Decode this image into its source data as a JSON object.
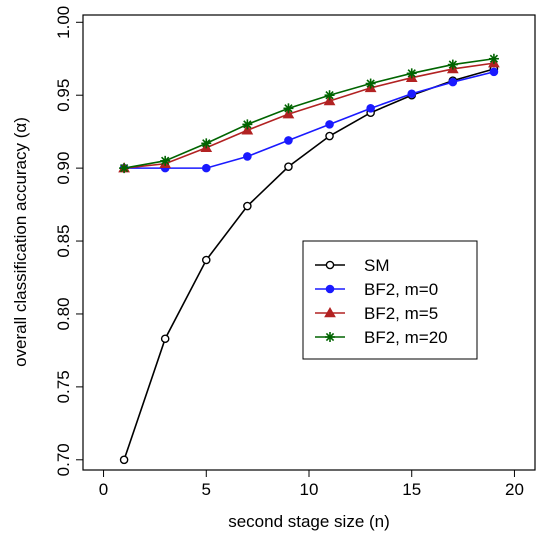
{
  "chart_data": {
    "type": "line",
    "xlabel": "second stage size  (n)",
    "ylabel_prefix": "overall classification accuracy  (",
    "ylabel_symbol": "α",
    "ylabel_suffix": ")",
    "xlim": [
      -1,
      21
    ],
    "ylim": [
      0.693,
      1.005
    ],
    "xticks": [
      0,
      5,
      10,
      15,
      20
    ],
    "xtick_labels": [
      "0",
      "5",
      "10",
      "15",
      "20"
    ],
    "yticks": [
      0.7,
      0.75,
      0.8,
      0.85,
      0.9,
      0.95,
      1.0
    ],
    "ytick_labels": [
      "0.70",
      "0.75",
      "0.80",
      "0.85",
      "0.90",
      "0.95",
      "1.00"
    ],
    "grid": false,
    "legend_position": "center-right",
    "x": [
      1,
      3,
      5,
      7,
      9,
      11,
      13,
      15,
      17,
      19
    ],
    "series": [
      {
        "name": "SM",
        "color": "#000000",
        "marker": "open-circle",
        "values": [
          0.7,
          0.783,
          0.837,
          0.874,
          0.901,
          0.922,
          0.938,
          0.95,
          0.96,
          0.968
        ]
      },
      {
        "name": "BF2, m=0",
        "color": "#1a1aff",
        "marker": "filled-circle",
        "values": [
          0.9,
          0.9,
          0.9,
          0.908,
          0.919,
          0.93,
          0.941,
          0.951,
          0.959,
          0.966
        ]
      },
      {
        "name": "BF2, m=5",
        "color": "#b22222",
        "marker": "filled-triangle",
        "values": [
          0.9,
          0.903,
          0.914,
          0.926,
          0.937,
          0.946,
          0.955,
          0.962,
          0.968,
          0.972
        ]
      },
      {
        "name": "BF2, m=20",
        "color": "#006400",
        "marker": "asterisk",
        "values": [
          0.9,
          0.905,
          0.917,
          0.93,
          0.941,
          0.95,
          0.958,
          0.965,
          0.971,
          0.975
        ]
      }
    ]
  }
}
